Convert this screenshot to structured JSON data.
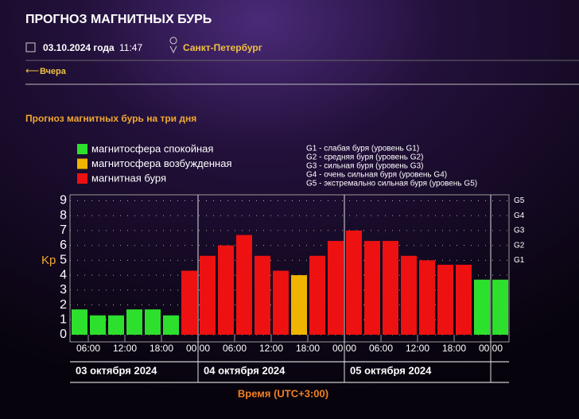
{
  "header": {
    "title": "ПРОГНОЗ МАГНИТНЫХ БУРЬ",
    "date": "03.10.2024 года",
    "time": "11:47",
    "city": "Санкт-Петербург",
    "back": "Вчера"
  },
  "chart_data": {
    "type": "bar",
    "title": "Прогноз магнитных бурь на три дня",
    "values": [
      1.7,
      1.3,
      1.3,
      1.7,
      1.7,
      1.3,
      4.3,
      5.3,
      6.0,
      6.7,
      5.3,
      4.3,
      4.0,
      5.3,
      6.3,
      7.0,
      6.3,
      6.3,
      5.3,
      5.0,
      4.7,
      4.7,
      3.7,
      3.7
    ],
    "colors": [
      "#2ee02e",
      "#2ee02e",
      "#2ee02e",
      "#2ee02e",
      "#2ee02e",
      "#2ee02e",
      "#ee1111",
      "#ee1111",
      "#ee1111",
      "#ee1111",
      "#ee1111",
      "#ee1111",
      "#f0b400",
      "#ee1111",
      "#ee1111",
      "#ee1111",
      "#ee1111",
      "#ee1111",
      "#ee1111",
      "#ee1111",
      "#ee1111",
      "#ee1111",
      "#2ee02e",
      "#2ee02e"
    ],
    "legend": [
      {
        "name": "магнитосфера спокойная",
        "color": "#2ee02e"
      },
      {
        "name": "магнитосфера возбужденная",
        "color": "#f0b400"
      },
      {
        "name": "магнитная буря",
        "color": "#ee1111"
      }
    ],
    "storm_levels": [
      "G1 - слабая буря (уровень G1)",
      "G2 - средняя буря (уровень G2)",
      "G3 - сильная буря (уровень G3)",
      "G4 - очень сильная буря (уровень G4)",
      "G5 - экстремально сильная буря (уровень G5)"
    ],
    "ylabel": "Kp",
    "xlabel": "Время (UTC+3:00)",
    "ylim": [
      0,
      9.4
    ],
    "yticks": [
      0,
      1,
      2,
      3,
      4,
      5,
      6,
      7,
      8,
      9
    ],
    "y2lim": [
      0,
      9.4
    ],
    "y2ticks": [
      {
        "value": 5,
        "label": "G1"
      },
      {
        "value": 6,
        "label": "G2"
      },
      {
        "value": 7,
        "label": "G3"
      },
      {
        "value": 8,
        "label": "G4"
      },
      {
        "value": 9,
        "label": "G5"
      }
    ],
    "xticks": [
      "06:00",
      "12:00",
      "18:00",
      "00:00",
      "06:00",
      "12:00",
      "18:00",
      "00:00",
      "06:00",
      "12:00",
      "18:00",
      "00:00"
    ],
    "days": [
      "03 октября 2024",
      "04 октября 2024",
      "05 октября 2024"
    ],
    "grid": true
  }
}
